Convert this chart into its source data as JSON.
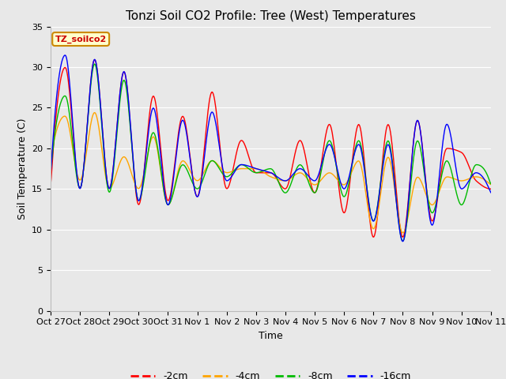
{
  "title": "Tonzi Soil CO2 Profile: Tree (West) Temperatures",
  "ylabel": "Soil Temperature (C)",
  "xlabel": "Time",
  "legend_label": "TZ_soilco2",
  "series_labels": [
    "-2cm",
    "-4cm",
    "-8cm",
    "-16cm"
  ],
  "series_colors": [
    "#ff0000",
    "#ffa500",
    "#00bb00",
    "#0000ff"
  ],
  "xtick_labels": [
    "Oct 27",
    "Oct 28",
    "Oct 29",
    "Oct 30",
    "Oct 31",
    "Nov 1",
    "Nov 2",
    "Nov 3",
    "Nov 4",
    "Nov 5",
    "Nov 6",
    "Nov 7",
    "Nov 8",
    "Nov 9",
    "Nov 10",
    "Nov 11"
  ],
  "ylim": [
    0,
    35
  ],
  "yticks": [
    0,
    5,
    10,
    15,
    20,
    25,
    30,
    35
  ],
  "fig_bg_color": "#e8e8e8",
  "plot_bg_color": "#e8e8e8",
  "grid_color": "#ffffff",
  "title_fontsize": 11,
  "axis_fontsize": 9,
  "tick_fontsize": 8,
  "n_days": 15,
  "pts_per_day": 48
}
